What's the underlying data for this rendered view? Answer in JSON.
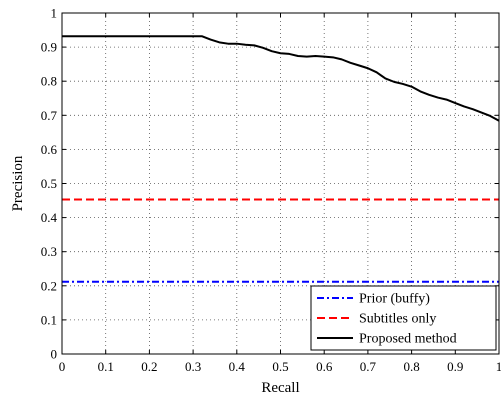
{
  "chart_data": {
    "type": "line",
    "title": "",
    "xlabel": "Recall",
    "ylabel": "Precision",
    "xlim": [
      0,
      1
    ],
    "ylim": [
      0,
      1
    ],
    "xticks": [
      "0",
      "0.1",
      "0.2",
      "0.3",
      "0.4",
      "0.5",
      "0.6",
      "0.7",
      "0.8",
      "0.9",
      "1"
    ],
    "yticks": [
      "0",
      "0.1",
      "0.2",
      "0.3",
      "0.4",
      "0.5",
      "0.6",
      "0.7",
      "0.8",
      "0.9",
      "1"
    ],
    "grid": true,
    "legend_position": "bottom-right",
    "series": [
      {
        "name": "Prior (buffy)",
        "color": "#0000ff",
        "line_style": "dash-dot",
        "x": [
          0,
          1
        ],
        "y": [
          0.212,
          0.212
        ]
      },
      {
        "name": "Subtitles only",
        "color": "#ff0000",
        "line_style": "dashed",
        "x": [
          0,
          1
        ],
        "y": [
          0.453,
          0.453
        ]
      },
      {
        "name": "Proposed method",
        "color": "#000000",
        "line_style": "solid",
        "x": [
          0,
          0.31,
          0.32,
          0.34,
          0.36,
          0.38,
          0.4,
          0.42,
          0.44,
          0.46,
          0.48,
          0.5,
          0.52,
          0.54,
          0.56,
          0.58,
          0.6,
          0.62,
          0.64,
          0.66,
          0.68,
          0.7,
          0.72,
          0.74,
          0.76,
          0.78,
          0.8,
          0.82,
          0.84,
          0.86,
          0.88,
          0.9,
          0.92,
          0.94,
          0.96,
          0.98,
          1.0
        ],
        "y": [
          0.932,
          0.932,
          0.932,
          0.922,
          0.914,
          0.91,
          0.91,
          0.907,
          0.905,
          0.898,
          0.888,
          0.882,
          0.88,
          0.874,
          0.872,
          0.874,
          0.872,
          0.87,
          0.864,
          0.854,
          0.846,
          0.838,
          0.826,
          0.808,
          0.798,
          0.792,
          0.784,
          0.77,
          0.76,
          0.752,
          0.746,
          0.736,
          0.726,
          0.718,
          0.708,
          0.698,
          0.684
        ]
      }
    ]
  }
}
